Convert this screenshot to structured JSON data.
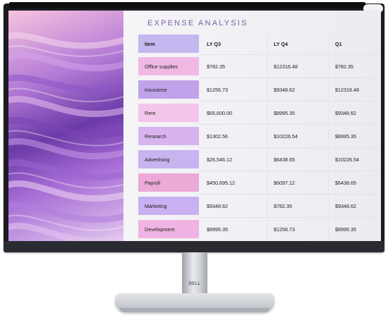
{
  "monitor": {
    "brand": "DELL"
  },
  "sheet": {
    "title": "EXPENSE ANALYSIS",
    "headers": [
      "Item",
      "LY Q3",
      "LY Q4",
      "Q1"
    ],
    "rows": [
      {
        "item": "Office supplies",
        "ly_q3": "$782.35",
        "ly_q4": "$12316.48",
        "q1": "$782.35",
        "color": "#f0b9e3"
      },
      {
        "item": "Insurance",
        "ly_q3": "$1256.73",
        "ly_q4": "$9348.62",
        "q1": "$12316.48",
        "color": "#bfa2ea"
      },
      {
        "item": "Rent",
        "ly_q3": "$65,600.00",
        "ly_q4": "$8995.35",
        "q1": "$9348.62",
        "color": "#f4c5ea"
      },
      {
        "item": "Research",
        "ly_q3": "$1302.56",
        "ly_q4": "$10226.54",
        "q1": "$8995.35",
        "color": "#d7b4ee"
      },
      {
        "item": "Advertising",
        "ly_q3": "$26,546.12",
        "ly_q4": "$6438.65",
        "q1": "$10226.54",
        "color": "#c7b4f0"
      },
      {
        "item": "Payroll",
        "ly_q3": "$450,695.12",
        "ly_q4": "$6097.12",
        "q1": "$6438.65",
        "color": "#eba9d8"
      },
      {
        "item": "Marketing",
        "ly_q3": "$9348.62",
        "ly_q4": "$782.35",
        "q1": "$9348.62",
        "color": "#c8b0f2"
      },
      {
        "item": "Development",
        "ly_q3": "$8995.35",
        "ly_q4": "$1256.73",
        "q1": "$8995.35",
        "color": "#f0b3e3"
      }
    ],
    "header_color": "#c5b7f0"
  }
}
